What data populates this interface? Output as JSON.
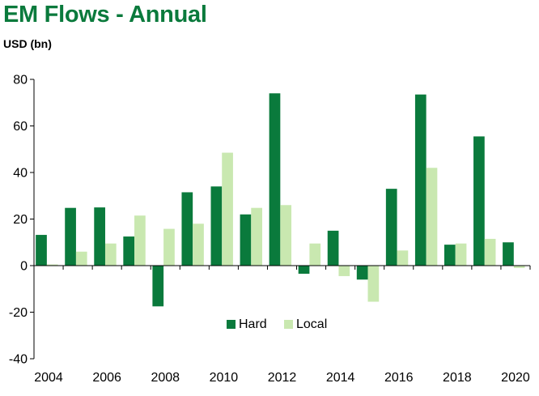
{
  "chart_data": {
    "type": "bar",
    "title": "EM Flows - Annual",
    "ylabel": "USD (bn)",
    "xlabel": "",
    "ylim": [
      -40,
      80
    ],
    "yticks": [
      80,
      60,
      40,
      20,
      0,
      -20,
      -40
    ],
    "categories": [
      "2004",
      "2005",
      "2006",
      "2007",
      "2008",
      "2009",
      "2010",
      "2011",
      "2012",
      "2013",
      "2014",
      "2015",
      "2016",
      "2017",
      "2018",
      "2019",
      "2020"
    ],
    "xtick_labels": [
      "2004",
      "2006",
      "2008",
      "2010",
      "2012",
      "2014",
      "2016",
      "2018",
      "2020"
    ],
    "series": [
      {
        "name": "Hard",
        "color": "#0a7a3c",
        "values": [
          13.2,
          24.8,
          25.0,
          12.5,
          -17.5,
          31.5,
          34.0,
          22.0,
          74.0,
          -3.5,
          15.0,
          -6.0,
          33.0,
          73.5,
          9.0,
          55.5,
          10.0
        ]
      },
      {
        "name": "Local",
        "color": "#c9e8b0",
        "values": [
          0.5,
          6.0,
          9.5,
          21.5,
          15.8,
          18.0,
          48.5,
          24.8,
          26.0,
          9.5,
          -4.5,
          -15.5,
          6.5,
          42.0,
          9.5,
          11.5,
          -1.0
        ]
      }
    ],
    "legend": "bottom-center",
    "grid": false
  }
}
